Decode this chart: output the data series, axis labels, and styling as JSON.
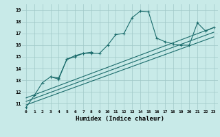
{
  "xlabel": "Humidex (Indice chaleur)",
  "bg_color": "#c8eae8",
  "grid_color": "#a0c8c8",
  "line_color": "#1a6b6b",
  "xlim": [
    -0.5,
    23.5
  ],
  "ylim": [
    10.5,
    19.5
  ],
  "yticks": [
    11,
    12,
    13,
    14,
    15,
    16,
    17,
    18,
    19
  ],
  "xticks": [
    0,
    1,
    2,
    3,
    4,
    5,
    6,
    7,
    8,
    9,
    10,
    11,
    12,
    13,
    14,
    15,
    16,
    17,
    18,
    19,
    20,
    21,
    22,
    23
  ],
  "series": [
    {
      "x": [
        0,
        1,
        2,
        3,
        4,
        5,
        6,
        7,
        8,
        9,
        10,
        11,
        12,
        13,
        14,
        15,
        16,
        17,
        18,
        19,
        20,
        21,
        22,
        23
      ],
      "y": [
        10.7,
        11.7,
        12.8,
        13.3,
        13.2,
        14.8,
        15.1,
        15.3,
        15.3,
        15.3,
        16.0,
        16.9,
        17.0,
        18.35,
        18.9,
        18.85,
        16.6,
        16.3,
        16.1,
        16.0,
        16.0,
        17.9,
        17.2,
        17.5
      ],
      "marker": true
    },
    {
      "x": [
        3,
        4,
        5,
        6,
        7,
        8
      ],
      "y": [
        13.3,
        13.1,
        14.8,
        15.0,
        15.3,
        15.4
      ],
      "marker": true
    },
    {
      "x": [
        0,
        23
      ],
      "y": [
        11.5,
        17.5
      ],
      "marker": false
    },
    {
      "x": [
        0,
        23
      ],
      "y": [
        11.2,
        17.1
      ],
      "marker": false
    },
    {
      "x": [
        0,
        23
      ],
      "y": [
        10.9,
        16.7
      ],
      "marker": false
    }
  ]
}
